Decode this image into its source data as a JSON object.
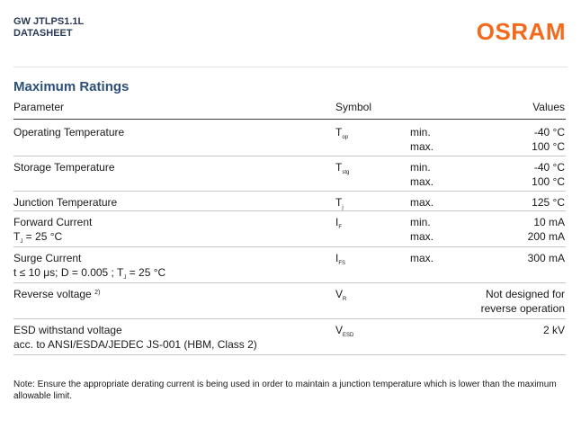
{
  "header": {
    "product": "GW JTLPS1.1L",
    "doc_type": "DATASHEET",
    "logo_text": "OSRAM"
  },
  "section_title": "Maximum Ratings",
  "table": {
    "headers": {
      "parameter": "Parameter",
      "symbol": "Symbol",
      "values": "Values"
    },
    "rows": [
      {
        "param": "Operating Temperature",
        "sym_main": "T",
        "sym_sub": "op",
        "lines": [
          {
            "label": "min.",
            "value": "-40 °C"
          },
          {
            "label": "max.",
            "value": "100 °C"
          }
        ]
      },
      {
        "param": "Storage Temperature",
        "sym_main": "T",
        "sym_sub": "stg",
        "lines": [
          {
            "label": "min.",
            "value": "-40 °C"
          },
          {
            "label": "max.",
            "value": "100 °C"
          }
        ]
      },
      {
        "param": "Junction Temperature",
        "sym_main": "T",
        "sym_sub": "j",
        "lines": [
          {
            "label": "max.",
            "value": "125 °C"
          }
        ]
      },
      {
        "param": "Forward Current",
        "cond_pre": "T",
        "cond_sub": "J",
        "cond_post": " = 25 °C",
        "sym_main": "I",
        "sym_sub": "F",
        "lines": [
          {
            "label": "min.",
            "value": "10 mA"
          },
          {
            "label": "max.",
            "value": "200 mA"
          }
        ]
      },
      {
        "param": "Surge Current",
        "cond_pre": "t ≤ 10 μs; D = 0.005 ; T",
        "cond_sub": "J",
        "cond_post": " = 25 °C",
        "sym_main": "I",
        "sym_sub": "FS",
        "lines": [
          {
            "label": "max.",
            "value": "300 mA"
          }
        ]
      },
      {
        "param": "Reverse voltage",
        "footnote": "2)",
        "sym_main": "V",
        "sym_sub": "R",
        "value_line1": "Not designed for",
        "value_line2": "reverse operation"
      },
      {
        "param": "ESD withstand voltage",
        "cond_text": "acc. to ANSI/ESDA/JEDEC JS-001 (HBM, Class 2)",
        "sym_main": "V",
        "sym_sub": "ESD",
        "value": "2 kV"
      }
    ]
  },
  "note": "Note: Ensure the appropriate derating current is being used in order to maintain a junction temperature which is lower than the maximum allowable limit.",
  "colors": {
    "logo": "#f26b1d",
    "title": "#2d4f78",
    "header_text": "#2b3a55"
  }
}
